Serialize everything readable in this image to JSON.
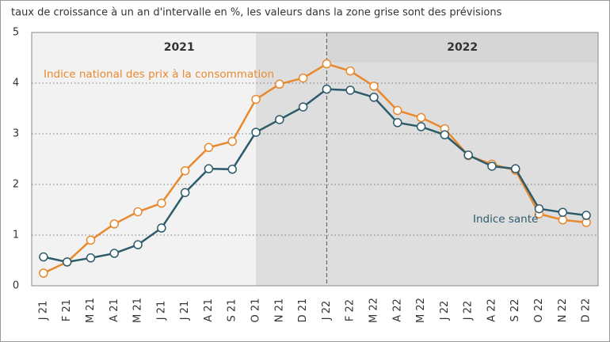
{
  "chart_data": {
    "type": "line",
    "subtitle": "taux de croissance à un an d'intervalle en %, les valeurs dans la zone grise sont des prévisions",
    "periods": [
      "2021",
      "2022"
    ],
    "categories": [
      "J 21",
      "F 21",
      "M 21",
      "A 21",
      "M 21",
      "J 21",
      "J 21",
      "A 21",
      "S 21",
      "O 21",
      "N 21",
      "D 21",
      "J 22",
      "F 22",
      "M 22",
      "A 22",
      "M 22",
      "J 22",
      "J 22",
      "A 22",
      "S 22",
      "O 22",
      "N 22",
      "D 22"
    ],
    "series": [
      {
        "name": "Indice national des prix à la consommation",
        "color": "#e8892e",
        "values": [
          0.25,
          0.47,
          0.9,
          1.22,
          1.46,
          1.63,
          2.27,
          2.73,
          2.85,
          3.68,
          3.98,
          4.1,
          4.38,
          4.24,
          3.94,
          3.46,
          3.32,
          3.1,
          2.57,
          2.4,
          2.28,
          1.42,
          1.3,
          1.25
        ]
      },
      {
        "name": "Indice santé",
        "color": "#2d5b6b",
        "values": [
          0.57,
          0.47,
          0.55,
          0.64,
          0.81,
          1.14,
          1.84,
          2.31,
          2.3,
          3.03,
          3.28,
          3.53,
          3.88,
          3.86,
          3.72,
          3.22,
          3.14,
          2.98,
          2.58,
          2.36,
          2.31,
          1.52,
          1.45,
          1.39
        ]
      }
    ],
    "ylim": [
      0,
      5
    ],
    "yticks": [
      0,
      1,
      2,
      3,
      4,
      5
    ],
    "grid": true
  }
}
